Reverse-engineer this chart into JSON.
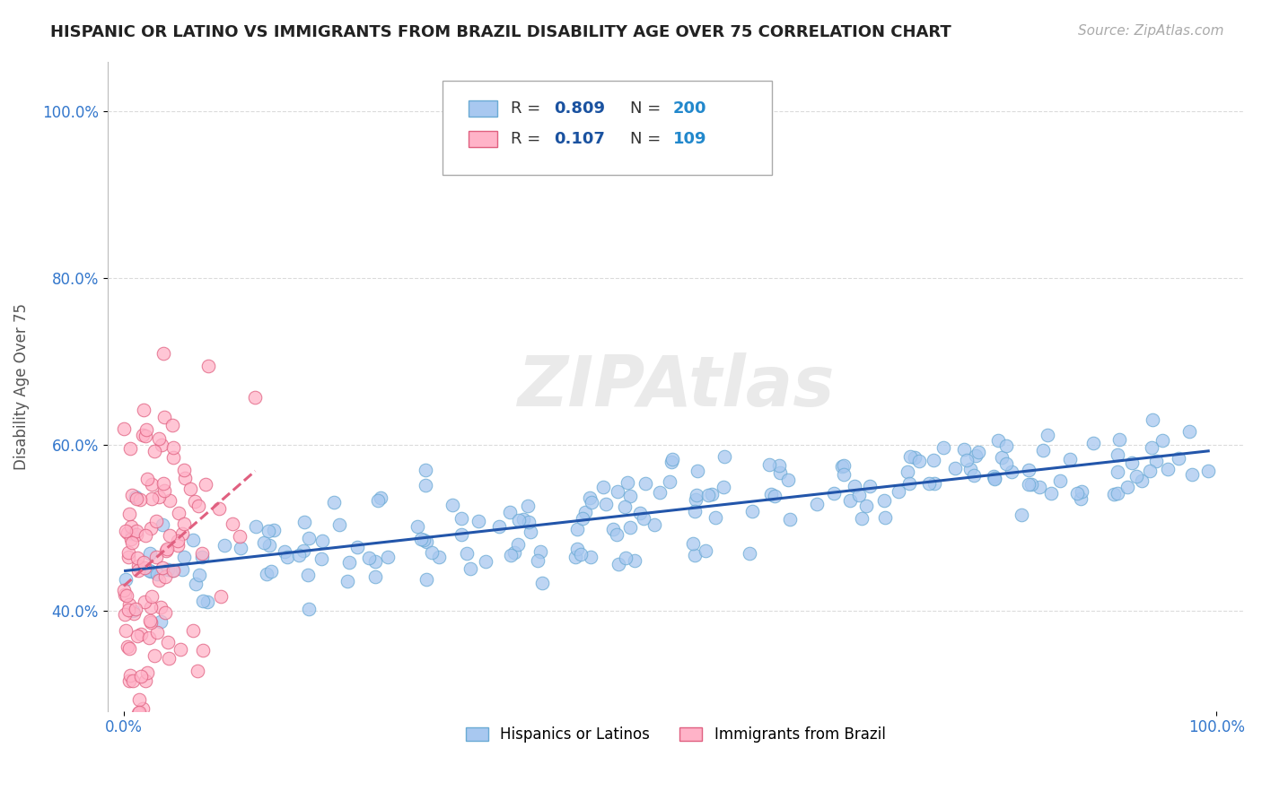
{
  "title": "HISPANIC OR LATINO VS IMMIGRANTS FROM BRAZIL DISABILITY AGE OVER 75 CORRELATION CHART",
  "source": "Source: ZipAtlas.com",
  "xlabel": "",
  "ylabel": "Disability Age Over 75",
  "watermark": "ZIPAtlas",
  "series1": {
    "label": "Hispanics or Latinos",
    "R": 0.809,
    "N": 200,
    "color": "#a8c8f0",
    "edge_color": "#6aaad4",
    "trend_color": "#2255aa",
    "trend_style": "-"
  },
  "series2": {
    "label": "Immigrants from Brazil",
    "R": 0.107,
    "N": 109,
    "color": "#ffb3c8",
    "edge_color": "#e06080",
    "trend_color": "#e06080",
    "trend_style": "--"
  },
  "legend_R_color": "#1a52a0",
  "legend_N_color": "#2288cc",
  "background_color": "#ffffff",
  "grid_color": "#cccccc",
  "title_color": "#222222",
  "source_color": "#aaaaaa"
}
